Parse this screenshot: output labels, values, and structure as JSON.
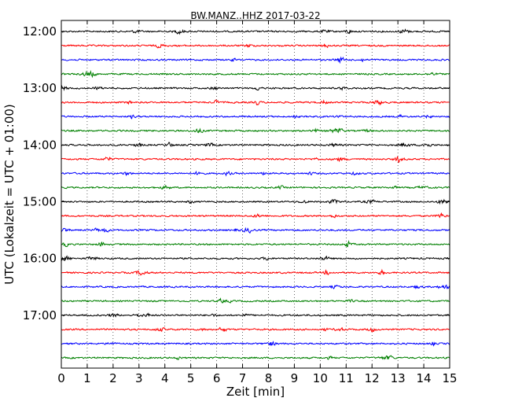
{
  "chart_data": {
    "type": "line",
    "title": "BW.MANZ..HHZ 2017-03-22",
    "xlabel": "Zeit  [min]",
    "ylabel": "UTC (Lokalzeit = UTC + 01:00)",
    "xlim": [
      0,
      15
    ],
    "x_ticks": [
      "0",
      "1",
      "2",
      "3",
      "4",
      "5",
      "6",
      "7",
      "8",
      "9",
      "10",
      "11",
      "12",
      "13",
      "14",
      "15"
    ],
    "y_tick_labels": [
      "12:00",
      "13:00",
      "14:00",
      "15:00",
      "16:00",
      "17:00"
    ],
    "grid": {
      "vertical": true,
      "dotted": true
    },
    "line_colors": [
      "#000000",
      "#ff0000",
      "#0000ff",
      "#008000"
    ],
    "traces": [
      {
        "start": "12:00"
      },
      {
        "start": "12:15"
      },
      {
        "start": "12:30"
      },
      {
        "start": "12:45"
      },
      {
        "start": "13:00"
      },
      {
        "start": "13:15"
      },
      {
        "start": "13:30"
      },
      {
        "start": "13:45"
      },
      {
        "start": "14:00"
      },
      {
        "start": "14:15"
      },
      {
        "start": "14:30"
      },
      {
        "start": "14:45"
      },
      {
        "start": "15:00"
      },
      {
        "start": "15:15"
      },
      {
        "start": "15:30"
      },
      {
        "start": "15:45"
      },
      {
        "start": "16:00"
      },
      {
        "start": "16:15"
      },
      {
        "start": "16:30"
      },
      {
        "start": "16:45"
      },
      {
        "start": "17:00"
      },
      {
        "start": "17:15"
      },
      {
        "start": "17:30"
      },
      {
        "start": "17:45"
      }
    ]
  }
}
